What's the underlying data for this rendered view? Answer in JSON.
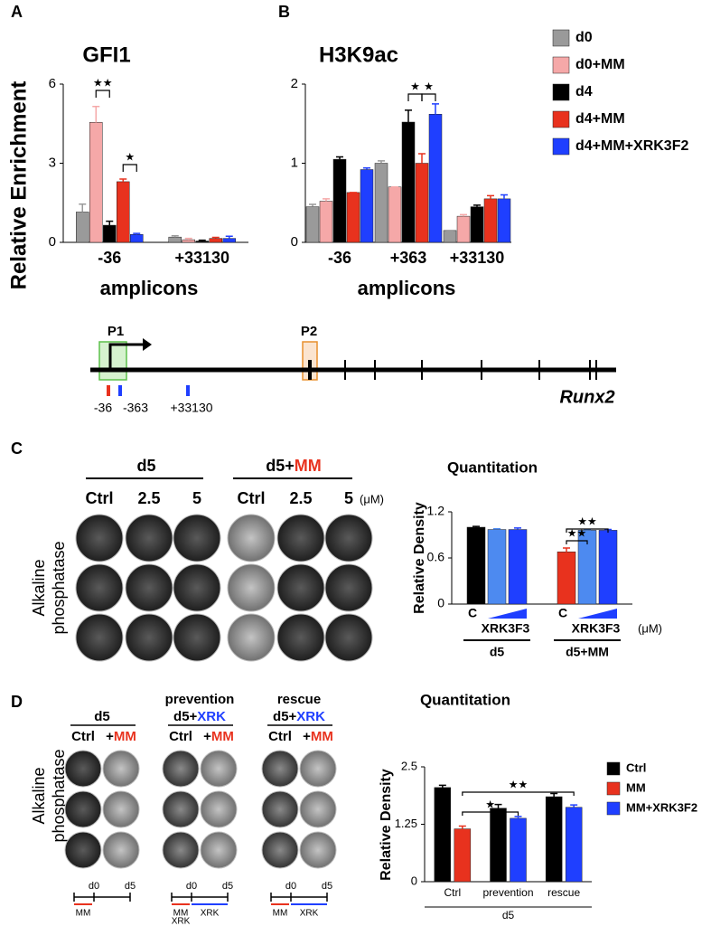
{
  "chart_data": [
    {
      "type": "bar",
      "title": "GFI1",
      "ylabel": "Relative Enrichment",
      "xlabel": "amplicons",
      "categories": [
        "-36",
        "+33130"
      ],
      "ylim": [
        0,
        6
      ],
      "yticks": [
        0,
        3,
        6
      ],
      "series": [
        {
          "color": "#9a9a9a",
          "values": [
            1.15,
            0.2
          ],
          "errors": [
            0.3,
            0.05
          ]
        },
        {
          "color": "#f5a8a8",
          "values": [
            4.55,
            0.1
          ],
          "errors": [
            0.6,
            0.05
          ]
        },
        {
          "color": "#000000",
          "values": [
            0.65,
            0.05
          ],
          "errors": [
            0.15,
            0.03
          ]
        },
        {
          "color": "#e8321e",
          "values": [
            2.3,
            0.15
          ],
          "errors": [
            0.1,
            0.04
          ]
        },
        {
          "color": "#1f3fff",
          "values": [
            0.3,
            0.15
          ],
          "errors": [
            0.04,
            0.08
          ]
        }
      ],
      "annotations": [
        "★★",
        "★"
      ]
    },
    {
      "type": "bar",
      "title": "H3K9ac",
      "xlabel": "amplicons",
      "categories": [
        "-36",
        "+363",
        "+33130"
      ],
      "ylim": [
        0,
        2
      ],
      "yticks": [
        0,
        1,
        2
      ],
      "legend": "right",
      "series": [
        {
          "name": "d0",
          "color": "#9a9a9a",
          "values": [
            0.45,
            1.0,
            0.15
          ],
          "errors": [
            0.03,
            0.03,
            0
          ]
        },
        {
          "name": "d0+MM",
          "color": "#f5a8a8",
          "values": [
            0.52,
            0.7,
            0.33
          ],
          "errors": [
            0.03,
            0,
            0.02
          ]
        },
        {
          "name": "d4",
          "color": "#000000",
          "values": [
            1.05,
            1.52,
            0.45
          ],
          "errors": [
            0.03,
            0.15,
            0.02
          ]
        },
        {
          "name": "d4+MM",
          "color": "#e8321e",
          "values": [
            0.63,
            1.0,
            0.55
          ],
          "errors": [
            0,
            0.12,
            0.04
          ]
        },
        {
          "name": "d4+MM+XRK3F2",
          "color": "#1f3fff",
          "values": [
            0.92,
            1.62,
            0.55
          ],
          "errors": [
            0.02,
            0.13,
            0.05
          ]
        }
      ],
      "annotations": [
        "★",
        "★"
      ]
    },
    {
      "type": "bar",
      "title": "Quantitation",
      "ylabel": "Relative Density",
      "categories": [
        "d5",
        "d5+MM"
      ],
      "ylim": [
        0,
        1.2
      ],
      "yticks": [
        0,
        0.6,
        1.2
      ],
      "control_label": "C",
      "treatment_label": "XRK3F3",
      "unit": "(μM)",
      "series": [
        {
          "colors": [
            "#000000",
            "#e8321e"
          ],
          "values": [
            1.0,
            0.68
          ],
          "errors": [
            0.01,
            0.05
          ]
        },
        {
          "color": "#4d8af0",
          "values": [
            0.97,
            0.96
          ],
          "errors": [
            0.01,
            0.01
          ]
        },
        {
          "color": "#1f3fff",
          "values": [
            0.97,
            0.96
          ],
          "errors": [
            0.02,
            0.01
          ]
        }
      ],
      "annotations": [
        "★★",
        "★★"
      ]
    },
    {
      "type": "bar",
      "title": "Quantitation",
      "ylabel": "Relative Density",
      "categories": [
        "Ctrl",
        "prevention",
        "rescue"
      ],
      "group_label": "d5",
      "ylim": [
        0,
        2.5
      ],
      "yticks": [
        0,
        1.25,
        2.5
      ],
      "legend": "right",
      "series": [
        {
          "name": "Ctrl",
          "color": "#000000",
          "values": [
            2.05,
            1.6,
            1.85
          ],
          "errors": [
            0.05,
            0.08,
            0.07
          ]
        },
        {
          "name": "MM",
          "color": "#e8321e",
          "values": [
            1.15,
            null,
            null
          ],
          "errors": [
            0.06,
            null,
            null
          ]
        },
        {
          "name": "MM+XRK3F2",
          "color": "#1f3fff",
          "values": [
            null,
            1.38,
            1.62
          ],
          "errors": [
            null,
            0.04,
            0.05
          ]
        }
      ],
      "annotations": [
        "★",
        "★★"
      ]
    }
  ],
  "panel_labels": [
    "A",
    "B",
    "C",
    "D"
  ],
  "schematic": {
    "promoters": [
      "P1",
      "P2"
    ],
    "amplicons": [
      "-36",
      "-363",
      "+33130"
    ],
    "gene": "Runx2"
  },
  "panel_c": {
    "stain": [
      "Alkaline",
      "phosphatase"
    ],
    "groups": [
      {
        "title": "d5",
        "lanes": [
          "Ctrl",
          "2.5",
          "5"
        ]
      },
      {
        "title": "d5+",
        "title_accent": "MM",
        "lanes": [
          "Ctrl",
          "2.5",
          "5"
        ],
        "unit": "(μM)"
      }
    ]
  },
  "panel_d": {
    "stain": [
      "Alkaline",
      "phosphatase"
    ],
    "groups": [
      {
        "title": "d5",
        "lanes": [
          "Ctrl",
          "+",
          "MM"
        ]
      },
      {
        "heading": "prevention",
        "title": "d5+",
        "title_accent": "XRK",
        "lanes": [
          "Ctrl",
          "+",
          "MM"
        ]
      },
      {
        "heading": "rescue",
        "title": "d5+",
        "title_accent": "XRK",
        "lanes": [
          "Ctrl",
          "+",
          "MM"
        ]
      }
    ],
    "timeline": {
      "start": "d0",
      "end": "d5",
      "mm": "MM",
      "xrk": "XRK"
    }
  }
}
